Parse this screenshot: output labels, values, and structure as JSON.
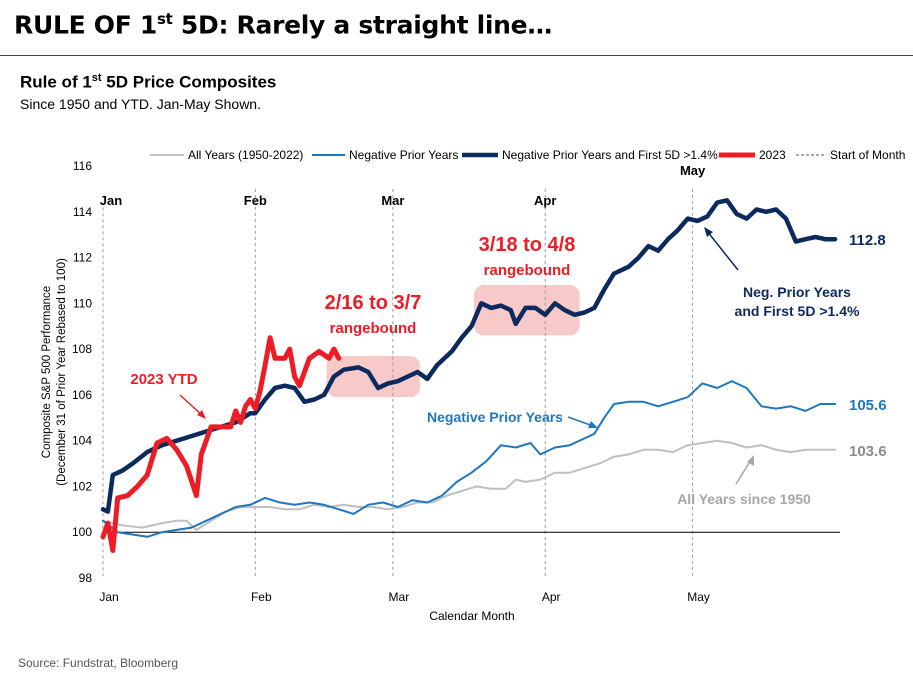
{
  "header": {
    "title_pre": "RULE OF 1",
    "title_sup": "st",
    "title_post": " 5D: Rarely a straight line…",
    "subtitle_pre": "Rule of 1",
    "subtitle_sup": "st",
    "subtitle_post": " 5D Price Composites",
    "subtitle2": "Since 1950 and YTD. Jan-May Shown."
  },
  "source": "Source: Fundstrat, Bloomberg",
  "chart_data": {
    "type": "line",
    "xlabel": "Calendar Month",
    "ylabel_line1": "Composite S&P 500 Performance",
    "ylabel_line2": "(December 31 of Prior Year Rebased to 100)",
    "ylim": [
      98,
      116
    ],
    "yticks": [
      98,
      100,
      102,
      104,
      106,
      108,
      110,
      112,
      114,
      116
    ],
    "xlim": [
      0,
      150
    ],
    "month_ticks": [
      {
        "label": "Jan",
        "x": 0
      },
      {
        "label": "Feb",
        "x": 31
      },
      {
        "label": "Mar",
        "x": 59
      },
      {
        "label": "Apr",
        "x": 90
      },
      {
        "label": "May",
        "x": 120
      }
    ],
    "legend_position": "top",
    "series": [
      {
        "name": "All Years (1950-2022)",
        "color": "#bfbfbf",
        "width": 2,
        "end_label": "103.6",
        "points": [
          [
            0,
            100.5
          ],
          [
            4,
            100.3
          ],
          [
            8,
            100.2
          ],
          [
            12,
            100.4
          ],
          [
            15,
            100.5
          ],
          [
            17,
            100.5
          ],
          [
            19,
            100.1
          ],
          [
            22,
            100.5
          ],
          [
            25,
            100.9
          ],
          [
            28,
            101.1
          ],
          [
            31,
            101.1
          ],
          [
            34,
            101.1
          ],
          [
            37,
            101.0
          ],
          [
            40,
            101.0
          ],
          [
            43,
            101.2
          ],
          [
            46,
            101.1
          ],
          [
            49,
            101.2
          ],
          [
            52,
            101.1
          ],
          [
            55,
            101.1
          ],
          [
            58,
            101.0
          ],
          [
            61,
            101.1
          ],
          [
            64,
            101.3
          ],
          [
            67,
            101.3
          ],
          [
            70,
            101.6
          ],
          [
            73,
            101.8
          ],
          [
            76,
            102.0
          ],
          [
            79,
            101.9
          ],
          [
            82,
            101.9
          ],
          [
            84,
            102.3
          ],
          [
            86,
            102.2
          ],
          [
            89,
            102.3
          ],
          [
            92,
            102.6
          ],
          [
            95,
            102.6
          ],
          [
            98,
            102.8
          ],
          [
            101,
            103.0
          ],
          [
            104,
            103.3
          ],
          [
            107,
            103.4
          ],
          [
            110,
            103.6
          ],
          [
            113,
            103.6
          ],
          [
            116,
            103.5
          ],
          [
            119,
            103.8
          ],
          [
            122,
            103.9
          ],
          [
            125,
            104.0
          ],
          [
            128,
            103.9
          ],
          [
            131,
            103.7
          ],
          [
            134,
            103.8
          ],
          [
            137,
            103.6
          ],
          [
            140,
            103.5
          ],
          [
            143,
            103.6
          ],
          [
            146,
            103.6
          ],
          [
            149,
            103.6
          ]
        ]
      },
      {
        "name": "Negative Prior Years",
        "color": "#1f77c0",
        "width": 2,
        "end_label": "105.6",
        "points": [
          [
            0,
            100.5
          ],
          [
            3,
            100.0
          ],
          [
            6,
            99.9
          ],
          [
            9,
            99.8
          ],
          [
            12,
            100.0
          ],
          [
            15,
            100.1
          ],
          [
            18,
            100.2
          ],
          [
            21,
            100.5
          ],
          [
            24,
            100.8
          ],
          [
            27,
            101.1
          ],
          [
            30,
            101.2
          ],
          [
            33,
            101.5
          ],
          [
            36,
            101.3
          ],
          [
            39,
            101.2
          ],
          [
            42,
            101.3
          ],
          [
            45,
            101.2
          ],
          [
            48,
            101.0
          ],
          [
            51,
            100.8
          ],
          [
            54,
            101.2
          ],
          [
            57,
            101.3
          ],
          [
            60,
            101.1
          ],
          [
            63,
            101.4
          ],
          [
            66,
            101.3
          ],
          [
            69,
            101.6
          ],
          [
            72,
            102.2
          ],
          [
            75,
            102.6
          ],
          [
            78,
            103.1
          ],
          [
            81,
            103.8
          ],
          [
            84,
            103.7
          ],
          [
            87,
            103.9
          ],
          [
            89,
            103.4
          ],
          [
            92,
            103.7
          ],
          [
            95,
            103.8
          ],
          [
            98,
            104.1
          ],
          [
            100,
            104.3
          ],
          [
            102,
            105.0
          ],
          [
            104,
            105.6
          ],
          [
            107,
            105.7
          ],
          [
            110,
            105.7
          ],
          [
            113,
            105.5
          ],
          [
            116,
            105.7
          ],
          [
            119,
            105.9
          ],
          [
            122,
            106.5
          ],
          [
            125,
            106.3
          ],
          [
            128,
            106.6
          ],
          [
            131,
            106.3
          ],
          [
            134,
            105.5
          ],
          [
            137,
            105.4
          ],
          [
            140,
            105.5
          ],
          [
            143,
            105.3
          ],
          [
            146,
            105.6
          ],
          [
            149,
            105.6
          ]
        ]
      },
      {
        "name": "Negative Prior Years and First 5D >1.4%",
        "color": "#0d2a5e",
        "width": 4.5,
        "end_label": "112.8",
        "points": [
          [
            0,
            101.0
          ],
          [
            1,
            100.9
          ],
          [
            2,
            102.5
          ],
          [
            4,
            102.7
          ],
          [
            6,
            103.0
          ],
          [
            9,
            103.5
          ],
          [
            12,
            103.8
          ],
          [
            15,
            104.0
          ],
          [
            18,
            104.2
          ],
          [
            21,
            104.4
          ],
          [
            24,
            104.6
          ],
          [
            27,
            104.8
          ],
          [
            30,
            105.2
          ],
          [
            31,
            105.2
          ],
          [
            33,
            105.8
          ],
          [
            35,
            106.3
          ],
          [
            37,
            106.4
          ],
          [
            39,
            106.3
          ],
          [
            41,
            105.7
          ],
          [
            43,
            105.8
          ],
          [
            45,
            106.0
          ],
          [
            47,
            106.8
          ],
          [
            49,
            107.1
          ],
          [
            52,
            107.2
          ],
          [
            54,
            107.0
          ],
          [
            56,
            106.3
          ],
          [
            58,
            106.5
          ],
          [
            60,
            106.6
          ],
          [
            62,
            106.8
          ],
          [
            64,
            107.0
          ],
          [
            66,
            106.7
          ],
          [
            68,
            107.3
          ],
          [
            71,
            107.9
          ],
          [
            73,
            108.5
          ],
          [
            75,
            109.0
          ],
          [
            77,
            110.0
          ],
          [
            79,
            109.8
          ],
          [
            81,
            109.9
          ],
          [
            83,
            109.7
          ],
          [
            84,
            109.1
          ],
          [
            86,
            109.8
          ],
          [
            88,
            109.8
          ],
          [
            90,
            109.5
          ],
          [
            92,
            110.0
          ],
          [
            94,
            109.7
          ],
          [
            96,
            109.5
          ],
          [
            98,
            109.6
          ],
          [
            100,
            109.8
          ],
          [
            102,
            110.6
          ],
          [
            104,
            111.3
          ],
          [
            107,
            111.6
          ],
          [
            109,
            112.0
          ],
          [
            111,
            112.5
          ],
          [
            113,
            112.3
          ],
          [
            115,
            112.8
          ],
          [
            117,
            113.2
          ],
          [
            119,
            113.7
          ],
          [
            121,
            113.6
          ],
          [
            123,
            113.8
          ],
          [
            125,
            114.4
          ],
          [
            127,
            114.5
          ],
          [
            129,
            113.9
          ],
          [
            131,
            113.7
          ],
          [
            133,
            114.1
          ],
          [
            135,
            114.0
          ],
          [
            137,
            114.1
          ],
          [
            139,
            113.7
          ],
          [
            141,
            112.7
          ],
          [
            143,
            112.8
          ],
          [
            145,
            112.9
          ],
          [
            147,
            112.8
          ],
          [
            149,
            112.8
          ]
        ]
      },
      {
        "name": "2023",
        "color": "#ee1c25",
        "width": 5,
        "end_label": "",
        "points": [
          [
            0,
            99.8
          ],
          [
            1,
            100.4
          ],
          [
            2,
            99.2
          ],
          [
            3,
            101.5
          ],
          [
            5,
            101.6
          ],
          [
            7,
            102.0
          ],
          [
            9,
            102.5
          ],
          [
            11,
            103.9
          ],
          [
            13,
            104.1
          ],
          [
            15,
            103.6
          ],
          [
            17,
            102.9
          ],
          [
            19,
            101.6
          ],
          [
            20,
            103.4
          ],
          [
            22,
            104.6
          ],
          [
            24,
            104.6
          ],
          [
            26,
            104.6
          ],
          [
            27,
            105.3
          ],
          [
            28,
            104.8
          ],
          [
            29,
            105.5
          ],
          [
            30,
            105.8
          ],
          [
            31,
            105.4
          ],
          [
            32,
            106.2
          ],
          [
            33,
            107.3
          ],
          [
            34,
            108.5
          ],
          [
            35,
            107.6
          ],
          [
            37,
            107.6
          ],
          [
            38,
            108.0
          ],
          [
            39,
            106.8
          ],
          [
            40,
            106.4
          ],
          [
            42,
            107.6
          ],
          [
            44,
            107.9
          ],
          [
            46,
            107.6
          ],
          [
            47,
            108.0
          ],
          [
            48,
            107.6
          ]
        ]
      }
    ],
    "legend_extra": "Start of Month",
    "month_header_labels": [
      {
        "label": "Jan",
        "x": 0,
        "y": 114.3
      },
      {
        "label": "Feb",
        "x": 31,
        "y": 114.3
      },
      {
        "label": "Mar",
        "x": 59,
        "y": 114.3
      },
      {
        "label": "Apr",
        "x": 90,
        "y": 114.3
      },
      {
        "label": "May",
        "x": 120,
        "y": 115.6
      }
    ],
    "annotations": {
      "box1_title": "2/16 to 3/7",
      "box1_sub": "rangebound",
      "box2_title": "3/18 to 4/8",
      "box2_sub": "rangebound",
      "ytd_label": "2023 YTD",
      "neg_label": "Negative Prior Years",
      "neg5d_line1": "Neg. Prior Years",
      "neg5d_line2": "and First 5D >1.4%",
      "all_label": "All Years since 1950"
    }
  }
}
